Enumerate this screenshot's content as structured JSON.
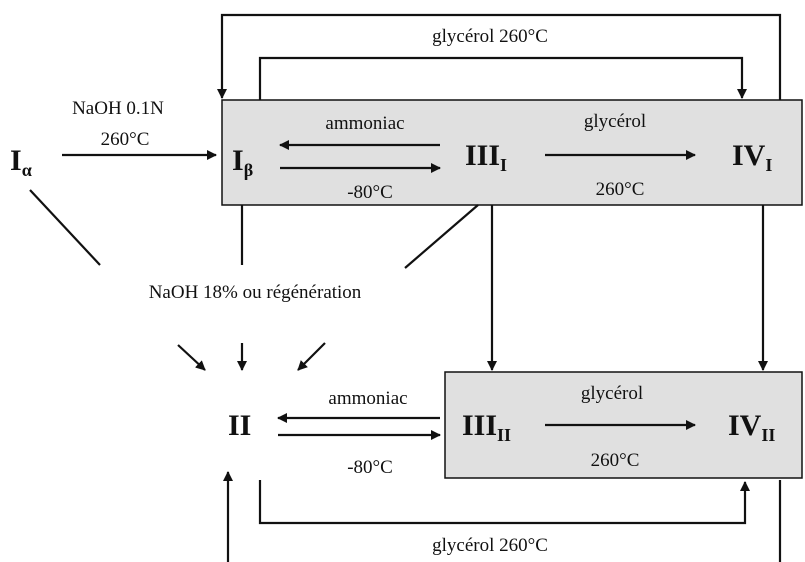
{
  "nodes": [
    {
      "label": "I",
      "sub": "α"
    },
    {
      "label": "I",
      "sub": "β"
    },
    {
      "label": "III",
      "sub": "I"
    },
    {
      "label": "IV",
      "sub": "I"
    },
    {
      "label": "II"
    },
    {
      "label": "III",
      "sub": "II"
    },
    {
      "label": "IV",
      "sub": "II"
    }
  ],
  "edges": [
    {
      "label": "NaOH 0.1N",
      "sub_label": "260°C"
    },
    {
      "label": "ammoniac",
      "sub_label": "-80°C"
    },
    {
      "label": "glycérol",
      "sub_label": "260°C"
    },
    {
      "label": "glycérol 260°C"
    },
    {
      "label": "NaOH 18% ou régénération"
    },
    {
      "label": "ammoniac",
      "sub_label": "-80°C"
    },
    {
      "label": "glycérol",
      "sub_label": "260°C"
    },
    {
      "label": "glycérol 260°C"
    }
  ]
}
